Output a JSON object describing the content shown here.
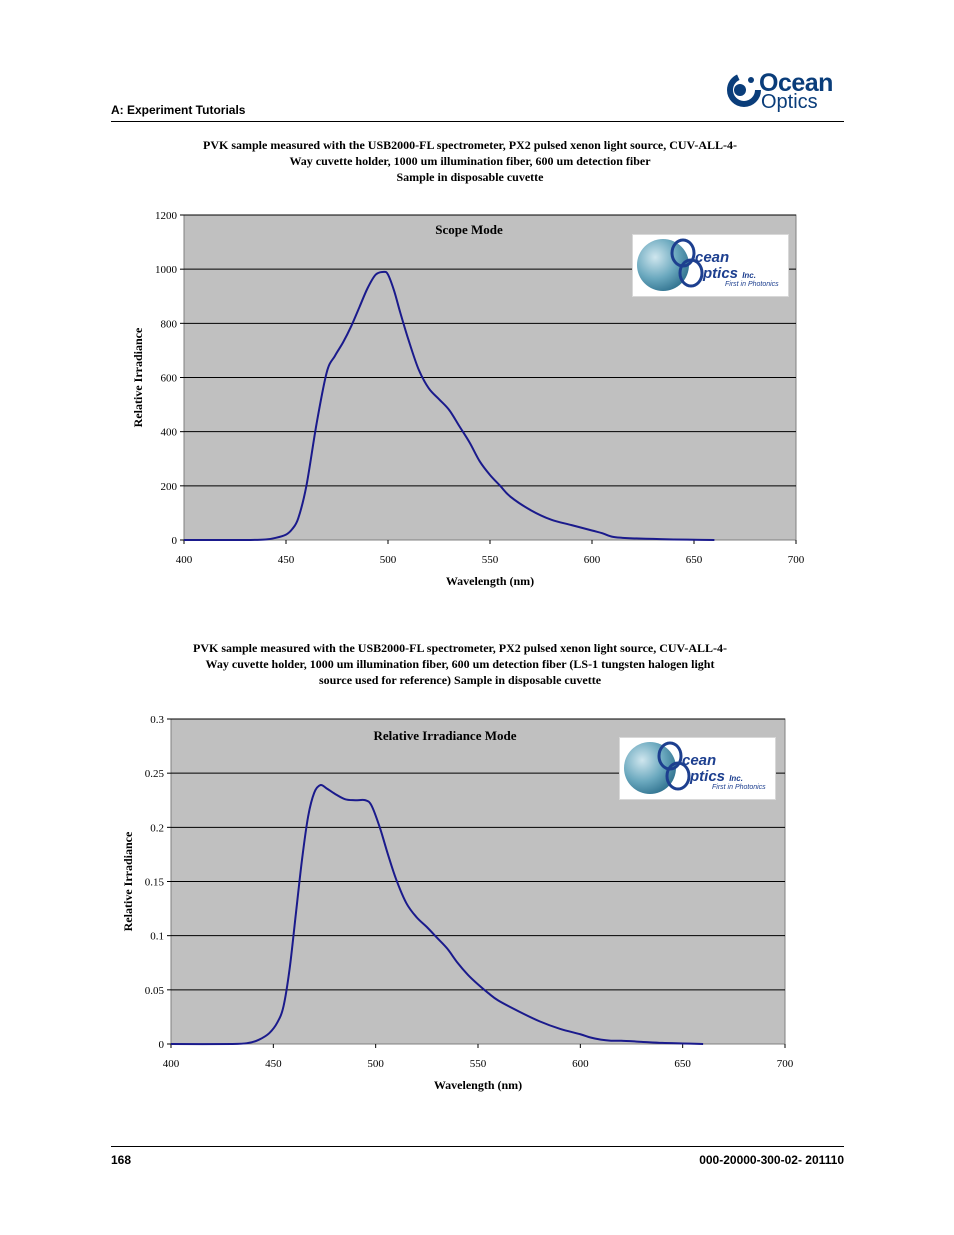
{
  "header": {
    "section_title": "A: Experiment Tutorials",
    "brand_word_1": "Ocean",
    "brand_word_2": "Optics"
  },
  "footer": {
    "page_number": "168",
    "doc_number": "000-20000-300-02- 201110"
  },
  "inset_logo": {
    "line1": "cean",
    "line2": "ptics",
    "inc": "Inc.",
    "tagline": "First in Photonics"
  },
  "colors": {
    "plot_background": "#c0c0c0",
    "series_line": "#1a1a8c",
    "gridline": "#000000",
    "brand": "#0a3d7a"
  },
  "chart_data": [
    {
      "type": "line",
      "title": "PVK sample measured with the USB2000-FL spectrometer, PX2 pulsed xenon light source, CUV-ALL-4-Way cuvette holder, 1000 um illumination fiber, 600 um detection fiber Sample in disposable cuvette",
      "title_lines": [
        "PVK sample measured with the USB2000-FL spectrometer, PX2 pulsed xenon light source, CUV-ALL-4-",
        "Way cuvette holder, 1000 um illumination fiber, 600 um detection fiber",
        "Sample in disposable cuvette"
      ],
      "plot_label": "Scope Mode",
      "xlabel": "Wavelength (nm)",
      "ylabel": "Relative Irradiance",
      "xlim": [
        400,
        700
      ],
      "ylim": [
        0,
        1200
      ],
      "x_ticks": [
        400,
        450,
        500,
        550,
        600,
        650,
        700
      ],
      "y_ticks": [
        0,
        200,
        400,
        600,
        800,
        1000,
        1200
      ],
      "y_tick_labels": [
        "0",
        "200",
        "400",
        "600",
        "800",
        "1000",
        "1200"
      ],
      "grid": true,
      "series": [
        {
          "x": [
            400,
            430,
            440,
            445,
            450,
            453,
            456,
            460,
            465,
            470,
            474,
            478,
            482,
            486,
            490,
            494,
            498,
            500,
            503,
            506,
            510,
            515,
            520,
            525,
            530,
            535,
            540,
            545,
            550,
            555,
            560,
            570,
            580,
            590,
            600,
            605,
            610,
            615,
            620,
            630,
            640,
            650,
            660
          ],
          "y": [
            0,
            0,
            2,
            8,
            20,
            40,
            80,
            200,
            430,
            620,
            680,
            730,
            790,
            860,
            930,
            980,
            990,
            980,
            920,
            840,
            740,
            630,
            560,
            520,
            480,
            420,
            360,
            290,
            240,
            200,
            160,
            110,
            75,
            55,
            35,
            25,
            12,
            8,
            6,
            4,
            2,
            1,
            0
          ]
        }
      ]
    },
    {
      "type": "line",
      "title": "PVK sample measured with the USB2000-FL spectrometer, PX2 pulsed xenon light source, CUV-ALL-4-Way cuvette holder, 1000 um illumination fiber, 600 um detection fiber (LS-1 tungsten halogen light source used for reference) Sample in disposable cuvette",
      "title_lines": [
        "PVK sample measured with the USB2000-FL spectrometer, PX2 pulsed xenon light source, CUV-ALL-4-",
        "Way cuvette holder, 1000 um illumination fiber, 600 um detection fiber (LS-1 tungsten halogen light",
        "source used for reference) Sample in disposable cuvette"
      ],
      "plot_label": "Relative Irradiance Mode",
      "xlabel": "Wavelength (nm)",
      "ylabel": "Relative Irradiance",
      "xlim": [
        400,
        700
      ],
      "ylim": [
        0,
        0.3
      ],
      "x_ticks": [
        400,
        450,
        500,
        550,
        600,
        650,
        700
      ],
      "y_ticks": [
        0,
        0.05,
        0.1,
        0.15,
        0.2,
        0.25,
        0.3
      ],
      "y_tick_labels": [
        "0",
        "0.05",
        "0.1",
        "0.15",
        "0.2",
        "0.25",
        "0.3"
      ],
      "grid": true,
      "series": [
        {
          "x": [
            400,
            430,
            438,
            443,
            448,
            452,
            455,
            458,
            461,
            464,
            467,
            470,
            473,
            476,
            480,
            485,
            490,
            495,
            498,
            502,
            506,
            510,
            515,
            520,
            525,
            530,
            535,
            540,
            545,
            550,
            555,
            560,
            570,
            580,
            590,
            600,
            605,
            610,
            615,
            620,
            630,
            640,
            650,
            660
          ],
          "y": [
            0,
            0,
            0.001,
            0.004,
            0.01,
            0.02,
            0.035,
            0.07,
            0.12,
            0.17,
            0.21,
            0.232,
            0.239,
            0.236,
            0.231,
            0.226,
            0.225,
            0.225,
            0.22,
            0.2,
            0.175,
            0.152,
            0.13,
            0.117,
            0.108,
            0.098,
            0.088,
            0.075,
            0.064,
            0.055,
            0.047,
            0.04,
            0.03,
            0.021,
            0.014,
            0.009,
            0.006,
            0.004,
            0.003,
            0.003,
            0.002,
            0.001,
            0.0005,
            0
          ]
        }
      ]
    }
  ]
}
